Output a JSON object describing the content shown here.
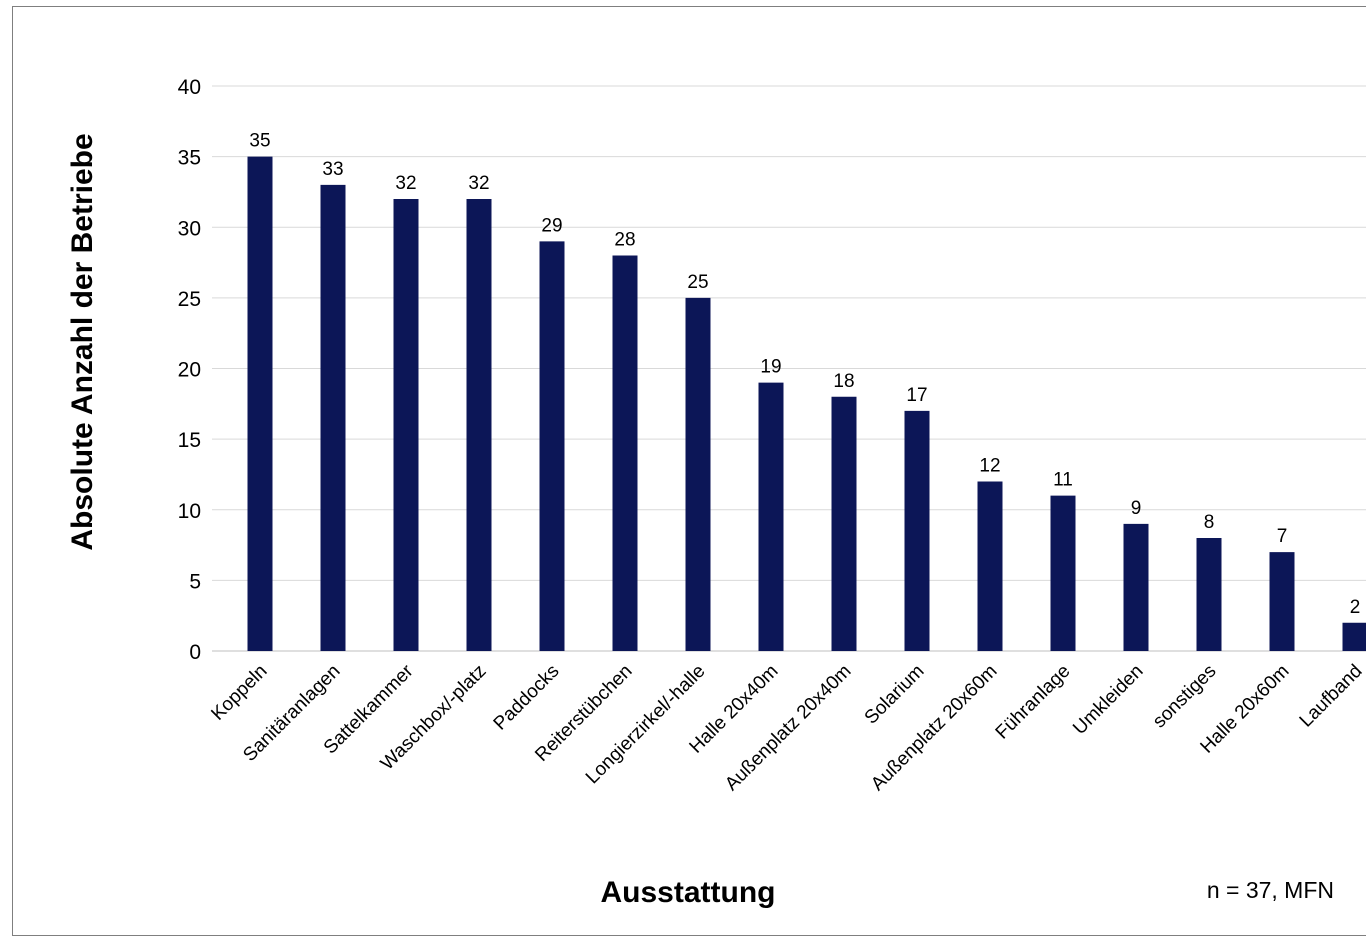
{
  "chart_data": {
    "type": "bar",
    "categories": [
      "Koppeln",
      "Sanitäranlagen",
      "Sattelkammer",
      "Waschbox/-platz",
      "Paddocks",
      "Reiterstübchen",
      "Longierzirkel/-halle",
      "Halle 20x40m",
      "Außenplatz 20x40m",
      "Solarium",
      "Außenplatz 20x60m",
      "Führanlage",
      "Umkleiden",
      "sonstiges",
      "Halle 20x60m",
      "Laufband"
    ],
    "values": [
      35,
      33,
      32,
      32,
      29,
      28,
      25,
      19,
      18,
      17,
      12,
      11,
      9,
      8,
      7,
      2
    ],
    "xlabel": "Ausstattung",
    "ylabel": "Absolute Anzahl der Betriebe",
    "ylim": [
      0,
      40
    ],
    "yticks": [
      0,
      5,
      10,
      15,
      20,
      25,
      30,
      35,
      40
    ],
    "grid": true,
    "bar_color": "#0c1657",
    "note": "n = 37, MFN"
  }
}
